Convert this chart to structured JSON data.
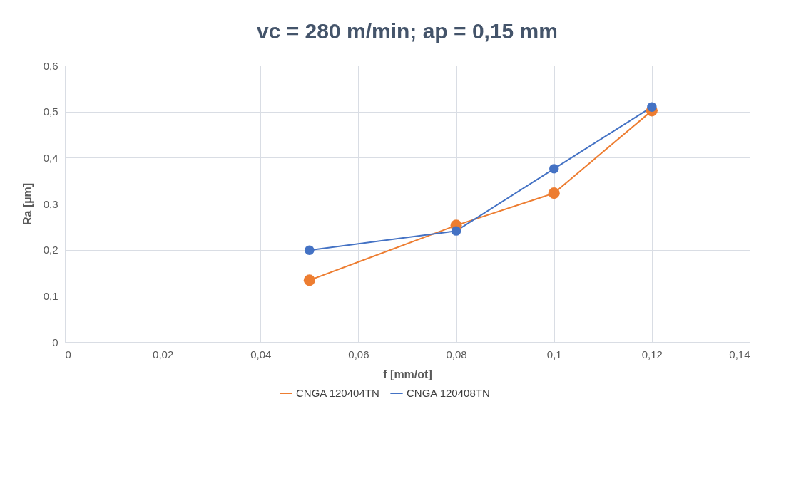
{
  "chart_data": {
    "type": "line",
    "title": "vc = 280 m/min; ap = 0,15 mm",
    "xlabel": "f [mm/ot]",
    "ylabel": "Ra [µm]",
    "x": [
      0.05,
      0.08,
      0.1,
      0.12
    ],
    "series": [
      {
        "name": "CNGA 120404TN",
        "color": "#ed7d31",
        "values": [
          0.134,
          0.253,
          0.323,
          0.502
        ]
      },
      {
        "name": "CNGA 120408TN",
        "color": "#4472c4",
        "values": [
          0.199,
          0.241,
          0.376,
          0.51
        ]
      }
    ],
    "xlim": [
      0,
      0.14
    ],
    "xticks": [
      0,
      {
        "value": 0.02,
        "label": "0,02"
      },
      {
        "value": 0.04,
        "label": "0,04"
      },
      {
        "value": 0.06,
        "label": "0,06"
      },
      {
        "value": 0.08,
        "label": "0,08"
      },
      {
        "value": 0.1,
        "label": "0,1"
      },
      {
        "value": 0.12,
        "label": "0,12"
      },
      {
        "value": 0.14,
        "label": "0,14"
      }
    ],
    "ylim": [
      0,
      0.6
    ],
    "yticks": [
      0,
      {
        "value": 0.1,
        "label": "0,1"
      },
      {
        "value": 0.2,
        "label": "0,2"
      },
      {
        "value": 0.3,
        "label": "0,3"
      },
      {
        "value": 0.4,
        "label": "0,4"
      },
      {
        "value": 0.5,
        "label": "0,5"
      },
      {
        "value": 0.6,
        "label": "0,6"
      }
    ],
    "grid": true,
    "legend": "bottom",
    "marker": "circle",
    "line_style": "solid"
  }
}
